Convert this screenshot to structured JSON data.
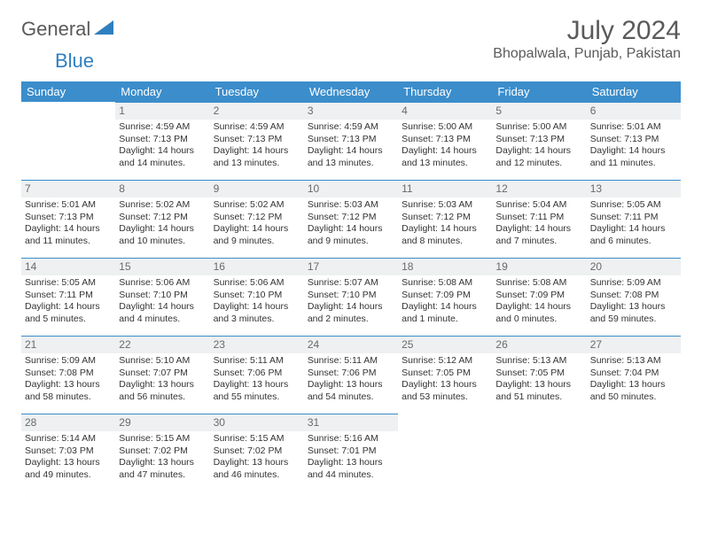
{
  "logo": {
    "text1": "General",
    "text2": "Blue"
  },
  "title": "July 2024",
  "location": "Bhopalwala, Punjab, Pakistan",
  "colors": {
    "header_bg": "#3b8dcb",
    "header_text": "#ffffff",
    "daynum_bg": "#eef0f1",
    "daynum_text": "#6a6a6a",
    "text": "#333333",
    "accent": "#2f7fc0",
    "logo_gray": "#5a5a5a"
  },
  "weekdays": [
    "Sunday",
    "Monday",
    "Tuesday",
    "Wednesday",
    "Thursday",
    "Friday",
    "Saturday"
  ],
  "weeks": [
    [
      null,
      {
        "n": "1",
        "sr": "4:59 AM",
        "ss": "7:13 PM",
        "dl": "14 hours and 14 minutes."
      },
      {
        "n": "2",
        "sr": "4:59 AM",
        "ss": "7:13 PM",
        "dl": "14 hours and 13 minutes."
      },
      {
        "n": "3",
        "sr": "4:59 AM",
        "ss": "7:13 PM",
        "dl": "14 hours and 13 minutes."
      },
      {
        "n": "4",
        "sr": "5:00 AM",
        "ss": "7:13 PM",
        "dl": "14 hours and 13 minutes."
      },
      {
        "n": "5",
        "sr": "5:00 AM",
        "ss": "7:13 PM",
        "dl": "14 hours and 12 minutes."
      },
      {
        "n": "6",
        "sr": "5:01 AM",
        "ss": "7:13 PM",
        "dl": "14 hours and 11 minutes."
      }
    ],
    [
      {
        "n": "7",
        "sr": "5:01 AM",
        "ss": "7:13 PM",
        "dl": "14 hours and 11 minutes."
      },
      {
        "n": "8",
        "sr": "5:02 AM",
        "ss": "7:12 PM",
        "dl": "14 hours and 10 minutes."
      },
      {
        "n": "9",
        "sr": "5:02 AM",
        "ss": "7:12 PM",
        "dl": "14 hours and 9 minutes."
      },
      {
        "n": "10",
        "sr": "5:03 AM",
        "ss": "7:12 PM",
        "dl": "14 hours and 9 minutes."
      },
      {
        "n": "11",
        "sr": "5:03 AM",
        "ss": "7:12 PM",
        "dl": "14 hours and 8 minutes."
      },
      {
        "n": "12",
        "sr": "5:04 AM",
        "ss": "7:11 PM",
        "dl": "14 hours and 7 minutes."
      },
      {
        "n": "13",
        "sr": "5:05 AM",
        "ss": "7:11 PM",
        "dl": "14 hours and 6 minutes."
      }
    ],
    [
      {
        "n": "14",
        "sr": "5:05 AM",
        "ss": "7:11 PM",
        "dl": "14 hours and 5 minutes."
      },
      {
        "n": "15",
        "sr": "5:06 AM",
        "ss": "7:10 PM",
        "dl": "14 hours and 4 minutes."
      },
      {
        "n": "16",
        "sr": "5:06 AM",
        "ss": "7:10 PM",
        "dl": "14 hours and 3 minutes."
      },
      {
        "n": "17",
        "sr": "5:07 AM",
        "ss": "7:10 PM",
        "dl": "14 hours and 2 minutes."
      },
      {
        "n": "18",
        "sr": "5:08 AM",
        "ss": "7:09 PM",
        "dl": "14 hours and 1 minute."
      },
      {
        "n": "19",
        "sr": "5:08 AM",
        "ss": "7:09 PM",
        "dl": "14 hours and 0 minutes."
      },
      {
        "n": "20",
        "sr": "5:09 AM",
        "ss": "7:08 PM",
        "dl": "13 hours and 59 minutes."
      }
    ],
    [
      {
        "n": "21",
        "sr": "5:09 AM",
        "ss": "7:08 PM",
        "dl": "13 hours and 58 minutes."
      },
      {
        "n": "22",
        "sr": "5:10 AM",
        "ss": "7:07 PM",
        "dl": "13 hours and 56 minutes."
      },
      {
        "n": "23",
        "sr": "5:11 AM",
        "ss": "7:06 PM",
        "dl": "13 hours and 55 minutes."
      },
      {
        "n": "24",
        "sr": "5:11 AM",
        "ss": "7:06 PM",
        "dl": "13 hours and 54 minutes."
      },
      {
        "n": "25",
        "sr": "5:12 AM",
        "ss": "7:05 PM",
        "dl": "13 hours and 53 minutes."
      },
      {
        "n": "26",
        "sr": "5:13 AM",
        "ss": "7:05 PM",
        "dl": "13 hours and 51 minutes."
      },
      {
        "n": "27",
        "sr": "5:13 AM",
        "ss": "7:04 PM",
        "dl": "13 hours and 50 minutes."
      }
    ],
    [
      {
        "n": "28",
        "sr": "5:14 AM",
        "ss": "7:03 PM",
        "dl": "13 hours and 49 minutes."
      },
      {
        "n": "29",
        "sr": "5:15 AM",
        "ss": "7:02 PM",
        "dl": "13 hours and 47 minutes."
      },
      {
        "n": "30",
        "sr": "5:15 AM",
        "ss": "7:02 PM",
        "dl": "13 hours and 46 minutes."
      },
      {
        "n": "31",
        "sr": "5:16 AM",
        "ss": "7:01 PM",
        "dl": "13 hours and 44 minutes."
      },
      null,
      null,
      null
    ]
  ],
  "labels": {
    "sunrise": "Sunrise:",
    "sunset": "Sunset:",
    "daylight": "Daylight:"
  }
}
